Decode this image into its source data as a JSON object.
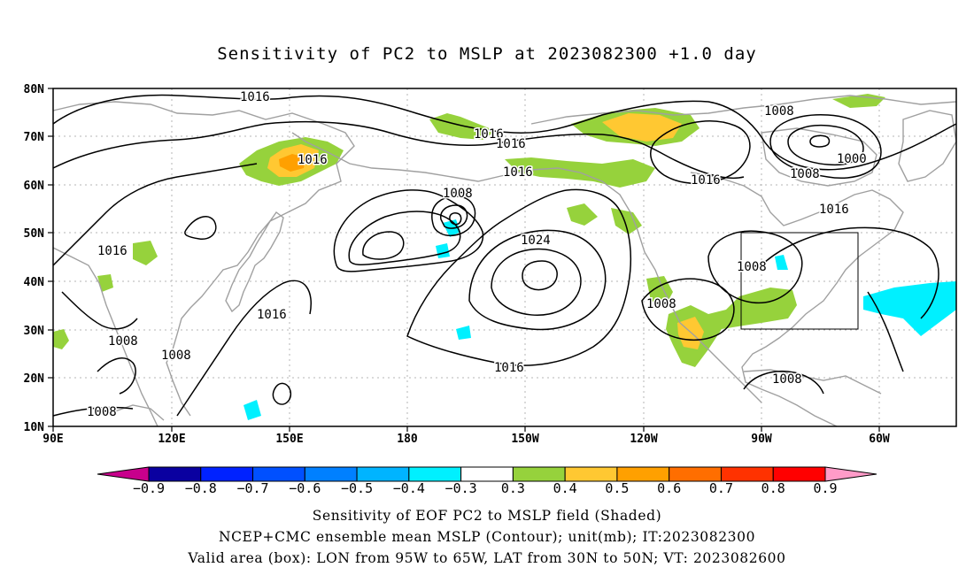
{
  "title": "Sensitivity of PC2 to MSLP at 2023082300 +1.0 day",
  "axes": {
    "lat_labels": [
      "80N",
      "70N",
      "60N",
      "50N",
      "40N",
      "30N",
      "20N",
      "10N"
    ],
    "lon_labels": [
      "90E",
      "120E",
      "150E",
      "180",
      "150W",
      "120W",
      "90W",
      "60W"
    ]
  },
  "contour_labels": [
    "1016",
    "1016",
    "1016",
    "1016",
    "1008",
    "1000",
    "1008",
    "1016",
    "1016",
    "1008",
    "1016",
    "1016",
    "1024",
    "1008",
    "1016",
    "1008",
    "1008",
    "1008",
    "1016",
    "1008",
    "1008"
  ],
  "valid_box": {
    "lon_from": "95W",
    "lon_to": "65W",
    "lat_from": "30N",
    "lat_to": "50N"
  },
  "colorbar": {
    "labels": [
      "-0.9",
      "-0.8",
      "-0.7",
      "-0.6",
      "-0.5",
      "-0.4",
      "-0.3",
      "0.3",
      "0.4",
      "0.5",
      "0.6",
      "0.7",
      "0.8",
      "0.9"
    ],
    "colors": [
      "#0a00a0",
      "#0022ff",
      "#0050ff",
      "#0080ff",
      "#00b4ff",
      "#00f0ff",
      "#ffffff",
      "#96d23c",
      "#ffc832",
      "#ffa000",
      "#ff6e00",
      "#ff3200",
      "#ff0000"
    ],
    "low_end": "#c8008c",
    "high_end": "#ff9bc8"
  },
  "captions": [
    "Sensitivity of EOF PC2 to MSLP field (Shaded)",
    "NCEP+CMC ensemble mean MSLP (Contour); unit(mb); IT:2023082300",
    "Valid area (box): LON from 95W to 65W, LAT from 30N to 50N; VT: 2023082600"
  ],
  "colors": {
    "coastline": "#a0a0a0",
    "contour": "#000000",
    "grid": "#b4b4b4"
  }
}
